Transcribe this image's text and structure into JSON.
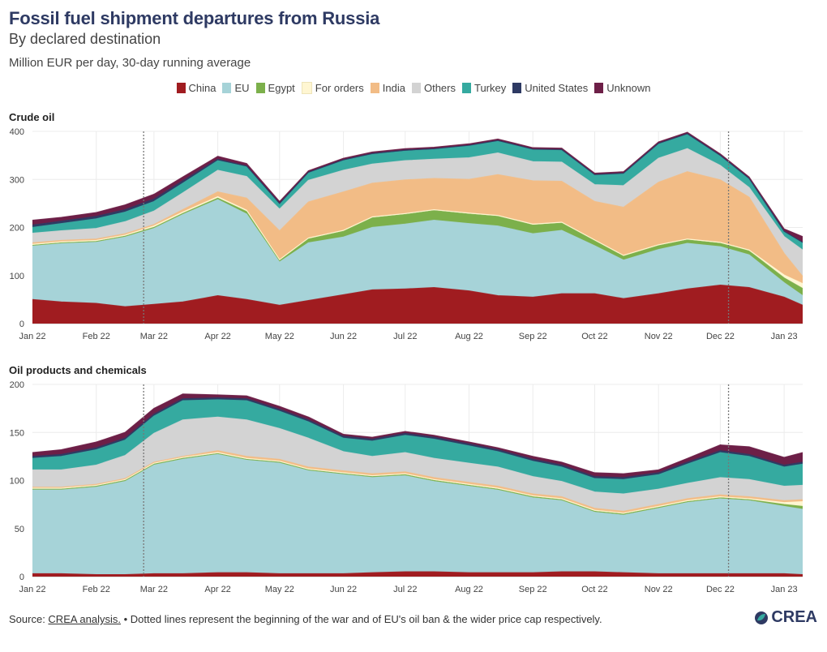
{
  "header": {
    "title": "Fossil fuel shipment departures from Russia",
    "subtitle": "By declared destination",
    "unit": "Million EUR per day, 30-day running average"
  },
  "legend": [
    {
      "label": "China",
      "color": "#a01c20"
    },
    {
      "label": "EU",
      "color": "#a6d3d8"
    },
    {
      "label": "Egypt",
      "color": "#7cb04b"
    },
    {
      "label": "For orders",
      "color": "#fff6d2"
    },
    {
      "label": "India",
      "color": "#f2bc86"
    },
    {
      "label": "Others",
      "color": "#d3d3d3"
    },
    {
      "label": "Turkey",
      "color": "#35aaa0"
    },
    {
      "label": "United States",
      "color": "#2e3a63"
    },
    {
      "label": "Unknown",
      "color": "#6d1f47"
    }
  ],
  "footer": {
    "source_prefix": "Source: ",
    "source_link": "CREA analysis.",
    "note": " • Dotted lines represent the beginning of the war and of EU's oil ban & the wider price cap respectively."
  },
  "logo": {
    "text": "CREA",
    "icon": "crea-leaf-icon"
  },
  "chart_data": [
    {
      "type": "area",
      "stacked": true,
      "title": "Crude oil",
      "ylim": [
        0,
        400
      ],
      "yticks": [
        0,
        100,
        200,
        300,
        400
      ],
      "grid": true,
      "xticks": [
        "Jan 22",
        "Feb 22",
        "Mar 22",
        "Apr 22",
        "May 22",
        "Jun 22",
        "Jul 22",
        "Aug 22",
        "Sep 22",
        "Oct 22",
        "Nov 22",
        "Dec 22",
        "Jan 23"
      ],
      "reference_lines": [
        "2022-02-24",
        "2022-12-05"
      ],
      "x": [
        "2022-01-01",
        "2022-01-15",
        "2022-02-01",
        "2022-02-15",
        "2022-03-01",
        "2022-03-15",
        "2022-04-01",
        "2022-04-15",
        "2022-05-01",
        "2022-05-15",
        "2022-06-01",
        "2022-06-15",
        "2022-07-01",
        "2022-07-15",
        "2022-08-01",
        "2022-08-15",
        "2022-09-01",
        "2022-09-15",
        "2022-10-01",
        "2022-10-15",
        "2022-11-01",
        "2022-11-15",
        "2022-12-01",
        "2022-12-15",
        "2023-01-01",
        "2023-01-10"
      ],
      "series": [
        {
          "name": "China",
          "values": [
            50,
            45,
            42,
            35,
            40,
            45,
            58,
            50,
            38,
            48,
            60,
            70,
            72,
            75,
            68,
            58,
            55,
            62,
            62,
            52,
            62,
            72,
            80,
            75,
            55,
            38
          ]
        },
        {
          "name": "EU",
          "values": [
            112,
            122,
            128,
            145,
            158,
            182,
            200,
            178,
            90,
            120,
            120,
            130,
            135,
            140,
            140,
            145,
            132,
            132,
            100,
            80,
            92,
            95,
            80,
            68,
            30,
            20
          ]
        },
        {
          "name": "Egypt",
          "values": [
            1,
            1,
            1,
            2,
            2,
            2,
            3,
            5,
            3,
            8,
            12,
            20,
            20,
            20,
            20,
            20,
            18,
            15,
            10,
            8,
            8,
            7,
            7,
            8,
            10,
            15
          ]
        },
        {
          "name": "For orders",
          "values": [
            2,
            2,
            2,
            2,
            3,
            3,
            3,
            3,
            2,
            2,
            2,
            2,
            2,
            2,
            2,
            2,
            2,
            2,
            2,
            2,
            2,
            2,
            2,
            2,
            6,
            10
          ]
        },
        {
          "name": "India",
          "values": [
            3,
            3,
            3,
            3,
            3,
            5,
            10,
            25,
            60,
            75,
            80,
            70,
            70,
            65,
            70,
            85,
            90,
            85,
            80,
            100,
            130,
            140,
            130,
            110,
            45,
            15
          ]
        },
        {
          "name": "Others",
          "values": [
            20,
            20,
            22,
            25,
            28,
            35,
            45,
            45,
            45,
            45,
            45,
            40,
            40,
            40,
            45,
            45,
            40,
            40,
            35,
            45,
            50,
            48,
            30,
            20,
            35,
            55
          ]
        },
        {
          "name": "Turkey",
          "values": [
            12,
            15,
            20,
            20,
            20,
            20,
            20,
            20,
            10,
            15,
            20,
            20,
            20,
            20,
            25,
            25,
            25,
            25,
            20,
            25,
            30,
            30,
            20,
            18,
            10,
            15
          ]
        },
        {
          "name": "United States",
          "values": [
            5,
            5,
            5,
            5,
            5,
            5,
            3,
            2,
            2,
            2,
            2,
            2,
            2,
            2,
            1,
            1,
            1,
            1,
            1,
            1,
            1,
            1,
            1,
            1,
            1,
            1
          ]
        },
        {
          "name": "Unknown",
          "values": [
            10,
            8,
            8,
            10,
            10,
            8,
            6,
            5,
            4,
            3,
            3,
            3,
            3,
            3,
            3,
            3,
            3,
            3,
            3,
            3,
            3,
            3,
            3,
            3,
            5,
            12
          ]
        }
      ]
    },
    {
      "type": "area",
      "stacked": true,
      "title": "Oil products and chemicals",
      "ylim": [
        0,
        200
      ],
      "yticks": [
        0,
        50,
        100,
        150,
        200
      ],
      "grid": true,
      "xticks": [
        "Jan 22",
        "Feb 22",
        "Mar 22",
        "Apr 22",
        "May 22",
        "Jun 22",
        "Jul 22",
        "Aug 22",
        "Sep 22",
        "Oct 22",
        "Nov 22",
        "Dec 22",
        "Jan 23"
      ],
      "reference_lines": [
        "2022-02-24",
        "2022-12-05"
      ],
      "x": [
        "2022-01-01",
        "2022-01-15",
        "2022-02-01",
        "2022-02-15",
        "2022-03-01",
        "2022-03-15",
        "2022-04-01",
        "2022-04-15",
        "2022-05-01",
        "2022-05-15",
        "2022-06-01",
        "2022-06-15",
        "2022-07-01",
        "2022-07-15",
        "2022-08-01",
        "2022-08-15",
        "2022-09-01",
        "2022-09-15",
        "2022-10-01",
        "2022-10-15",
        "2022-11-01",
        "2022-11-15",
        "2022-12-01",
        "2022-12-15",
        "2023-01-01",
        "2023-01-10"
      ],
      "series": [
        {
          "name": "China",
          "values": [
            3,
            3,
            2,
            2,
            3,
            3,
            4,
            4,
            3,
            3,
            3,
            4,
            5,
            5,
            4,
            4,
            4,
            5,
            5,
            4,
            3,
            3,
            3,
            3,
            3,
            2
          ]
        },
        {
          "name": "EU",
          "values": [
            88,
            88,
            92,
            98,
            114,
            120,
            124,
            118,
            116,
            108,
            104,
            100,
            100,
            94,
            90,
            86,
            78,
            74,
            62,
            60,
            68,
            74,
            78,
            76,
            70,
            68
          ]
        },
        {
          "name": "Egypt",
          "values": [
            0,
            0,
            0,
            0,
            0,
            0,
            0,
            0,
            0,
            0,
            0,
            0,
            1,
            1,
            1,
            1,
            1,
            1,
            1,
            1,
            1,
            1,
            1,
            1,
            2,
            3
          ]
        },
        {
          "name": "For orders",
          "values": [
            1,
            1,
            1,
            1,
            1,
            1,
            1,
            1,
            1,
            1,
            1,
            1,
            1,
            1,
            1,
            1,
            1,
            1,
            1,
            1,
            1,
            1,
            1,
            1,
            2,
            5
          ]
        },
        {
          "name": "India",
          "values": [
            1,
            1,
            1,
            1,
            1,
            1,
            2,
            2,
            2,
            2,
            2,
            2,
            2,
            2,
            2,
            2,
            2,
            2,
            2,
            2,
            2,
            2,
            2,
            2,
            2,
            2
          ]
        },
        {
          "name": "Others",
          "values": [
            18,
            18,
            20,
            24,
            30,
            38,
            35,
            38,
            32,
            30,
            20,
            18,
            20,
            20,
            20,
            20,
            18,
            16,
            17,
            18,
            16,
            16,
            18,
            18,
            15,
            15
          ]
        },
        {
          "name": "Turkey",
          "values": [
            12,
            14,
            16,
            16,
            18,
            20,
            18,
            20,
            18,
            17,
            14,
            16,
            18,
            20,
            18,
            16,
            16,
            15,
            14,
            15,
            15,
            20,
            26,
            24,
            20,
            22
          ]
        },
        {
          "name": "United States",
          "values": [
            2,
            2,
            2,
            2,
            2,
            2,
            2,
            2,
            2,
            2,
            2,
            2,
            2,
            2,
            2,
            2,
            2,
            2,
            2,
            2,
            2,
            2,
            2,
            2,
            2,
            2
          ]
        },
        {
          "name": "Unknown",
          "values": [
            4,
            5,
            6,
            6,
            6,
            5,
            3,
            3,
            3,
            3,
            2,
            2,
            2,
            2,
            2,
            2,
            3,
            3,
            4,
            4,
            3,
            4,
            6,
            8,
            8,
            10
          ]
        }
      ]
    }
  ]
}
